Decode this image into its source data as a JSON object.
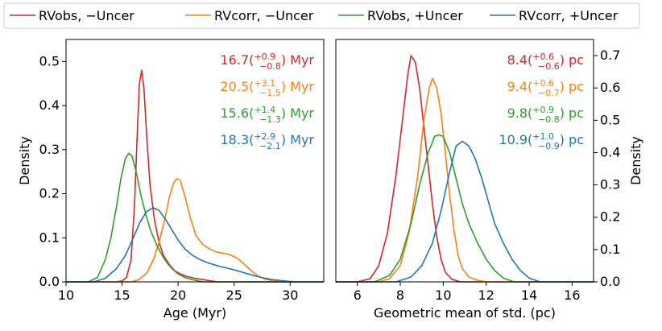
{
  "legend": {
    "entries": [
      {
        "label": "RVobs, −Uncer",
        "color": "#d62728"
      },
      {
        "label": "RVcorr, −Uncer",
        "color": "#ff7f0e"
      },
      {
        "label": "RVobs, +Uncer",
        "color": "#2ca02c"
      },
      {
        "label": "RVcorr, +Uncer",
        "color": "#1f77b4"
      }
    ]
  },
  "chart_data": [
    {
      "type": "line",
      "xlabel": "Age (Myr)",
      "ylabel": "Density",
      "xlim": [
        10,
        33
      ],
      "ylim": [
        0,
        0.55
      ],
      "xticks": [
        10,
        15,
        20,
        25,
        30
      ],
      "yticks": [
        0.0,
        0.1,
        0.2,
        0.3,
        0.4,
        0.5
      ],
      "annotations": [
        {
          "value": "16.7",
          "plus": "+0.9",
          "minus": "−0.8",
          "unit": "Myr",
          "color": "#d62728"
        },
        {
          "value": "20.5",
          "plus": "+3.1",
          "minus": "−1.5",
          "unit": "Myr",
          "color": "#ff7f0e"
        },
        {
          "value": "15.6",
          "plus": "+1.4",
          "minus": "−1.3",
          "unit": "Myr",
          "color": "#2ca02c"
        },
        {
          "value": "18.3",
          "plus": "+2.9",
          "minus": "−2.1",
          "unit": "Myr",
          "color": "#1f77b4"
        }
      ],
      "series": [
        {
          "name": "RVobs, −Uncer",
          "color": "#d62728",
          "x": [
            10,
            14.5,
            15.0,
            15.4,
            15.8,
            16.1,
            16.35,
            16.55,
            16.75,
            16.95,
            17.2,
            17.5,
            17.9,
            18.3,
            18.7,
            19.2,
            19.7,
            20.2,
            20.8,
            21.5,
            22.5,
            23.5,
            33
          ],
          "y": [
            0,
            0,
            0.002,
            0.01,
            0.05,
            0.17,
            0.33,
            0.45,
            0.48,
            0.44,
            0.33,
            0.22,
            0.14,
            0.09,
            0.06,
            0.04,
            0.025,
            0.018,
            0.012,
            0.008,
            0.004,
            0,
            0
          ]
        },
        {
          "name": "RVcorr, −Uncer",
          "color": "#ff7f0e",
          "x": [
            10,
            15.8,
            16.5,
            17.2,
            17.8,
            18.3,
            18.8,
            19.2,
            19.6,
            19.9,
            20.2,
            20.6,
            21.1,
            21.6,
            22.2,
            22.8,
            23.4,
            24.0,
            24.6,
            25.2,
            25.7,
            26.2,
            26.7,
            27.2,
            27.8,
            28.5,
            29.2,
            33
          ],
          "y": [
            0,
            0,
            0.005,
            0.02,
            0.05,
            0.09,
            0.14,
            0.19,
            0.225,
            0.234,
            0.23,
            0.195,
            0.145,
            0.105,
            0.085,
            0.075,
            0.068,
            0.065,
            0.062,
            0.055,
            0.045,
            0.033,
            0.022,
            0.012,
            0.006,
            0.002,
            0,
            0
          ]
        },
        {
          "name": "RVobs, +Uncer",
          "color": "#2ca02c",
          "x": [
            10,
            12.0,
            12.8,
            13.5,
            14.0,
            14.5,
            14.9,
            15.3,
            15.6,
            15.9,
            16.3,
            16.7,
            17.1,
            17.5,
            17.9,
            18.3,
            18.7,
            19.1,
            19.5,
            20.0,
            20.6,
            21.3,
            22.2,
            33
          ],
          "y": [
            0,
            0,
            0.01,
            0.05,
            0.1,
            0.17,
            0.235,
            0.28,
            0.292,
            0.285,
            0.245,
            0.195,
            0.155,
            0.12,
            0.095,
            0.073,
            0.055,
            0.04,
            0.029,
            0.018,
            0.01,
            0.005,
            0,
            0
          ]
        },
        {
          "name": "RVcorr, +Uncer",
          "color": "#1f77b4",
          "x": [
            10,
            12.5,
            13.5,
            14.5,
            15.3,
            16.0,
            16.6,
            17.2,
            17.8,
            18.3,
            18.8,
            19.4,
            20.0,
            20.6,
            21.3,
            22.0,
            22.8,
            23.6,
            24.4,
            25.2,
            26.0,
            26.8,
            27.6,
            28.5,
            29.5,
            30.5,
            33
          ],
          "y": [
            0,
            0,
            0.008,
            0.03,
            0.06,
            0.1,
            0.135,
            0.16,
            0.168,
            0.162,
            0.145,
            0.12,
            0.095,
            0.075,
            0.06,
            0.05,
            0.042,
            0.036,
            0.031,
            0.026,
            0.02,
            0.014,
            0.009,
            0.005,
            0.002,
            0,
            0
          ]
        }
      ]
    },
    {
      "type": "line",
      "xlabel": "Geometric mean of std. (pc)",
      "ylabel": "Density",
      "xlim": [
        5,
        17
      ],
      "ylim": [
        0,
        0.75
      ],
      "xticks": [
        6,
        8,
        10,
        12,
        14,
        16
      ],
      "yticks": [
        0.0,
        0.1,
        0.2,
        0.3,
        0.4,
        0.5,
        0.6,
        0.7
      ],
      "annotations": [
        {
          "value": "8.4",
          "plus": "+0.6",
          "minus": "−0.6",
          "unit": "pc",
          "color": "#d62728"
        },
        {
          "value": "9.4",
          "plus": "+0.6",
          "minus": "−0.7",
          "unit": "pc",
          "color": "#ff7f0e"
        },
        {
          "value": "9.8",
          "plus": "+0.9",
          "minus": "−0.8",
          "unit": "pc",
          "color": "#2ca02c"
        },
        {
          "value": "10.9",
          "plus": "+1.0",
          "minus": "−0.9",
          "unit": "pc",
          "color": "#1f77b4"
        }
      ],
      "series": [
        {
          "name": "RVobs, −Uncer",
          "color": "#d62728",
          "x": [
            5,
            6.0,
            6.6,
            7.0,
            7.4,
            7.8,
            8.1,
            8.35,
            8.5,
            8.7,
            8.9,
            9.1,
            9.3,
            9.5,
            9.7,
            9.9,
            10.1,
            10.4,
            10.8,
            17
          ],
          "y": [
            0,
            0,
            0.01,
            0.05,
            0.15,
            0.33,
            0.5,
            0.64,
            0.7,
            0.68,
            0.6,
            0.48,
            0.36,
            0.24,
            0.14,
            0.07,
            0.03,
            0.008,
            0,
            0
          ]
        },
        {
          "name": "RVcorr, −Uncer",
          "color": "#ff7f0e",
          "x": [
            5,
            7.0,
            7.5,
            8.0,
            8.4,
            8.8,
            9.1,
            9.35,
            9.5,
            9.7,
            9.9,
            10.1,
            10.3,
            10.5,
            10.7,
            10.9,
            11.2,
            11.6,
            12.0,
            17
          ],
          "y": [
            0,
            0,
            0.01,
            0.05,
            0.15,
            0.32,
            0.5,
            0.6,
            0.63,
            0.6,
            0.52,
            0.4,
            0.27,
            0.16,
            0.08,
            0.04,
            0.015,
            0.005,
            0,
            0
          ]
        },
        {
          "name": "RVobs, +Uncer",
          "color": "#2ca02c",
          "x": [
            5,
            6.8,
            7.5,
            8.0,
            8.5,
            8.9,
            9.3,
            9.6,
            9.8,
            10.0,
            10.3,
            10.6,
            10.9,
            11.2,
            11.6,
            12.0,
            12.4,
            12.8,
            13.3,
            17
          ],
          "y": [
            0,
            0,
            0.02,
            0.07,
            0.18,
            0.3,
            0.4,
            0.45,
            0.455,
            0.45,
            0.4,
            0.32,
            0.24,
            0.18,
            0.12,
            0.07,
            0.035,
            0.012,
            0,
            0
          ]
        },
        {
          "name": "RVcorr, +Uncer",
          "color": "#1f77b4",
          "x": [
            5,
            7.8,
            8.5,
            9.0,
            9.5,
            9.9,
            10.3,
            10.6,
            10.9,
            11.2,
            11.5,
            11.8,
            12.1,
            12.4,
            12.8,
            13.2,
            13.6,
            14.0,
            14.5,
            17
          ],
          "y": [
            0,
            0,
            0.015,
            0.05,
            0.12,
            0.22,
            0.34,
            0.42,
            0.435,
            0.42,
            0.38,
            0.32,
            0.25,
            0.18,
            0.12,
            0.07,
            0.035,
            0.012,
            0,
            0
          ]
        }
      ]
    }
  ]
}
